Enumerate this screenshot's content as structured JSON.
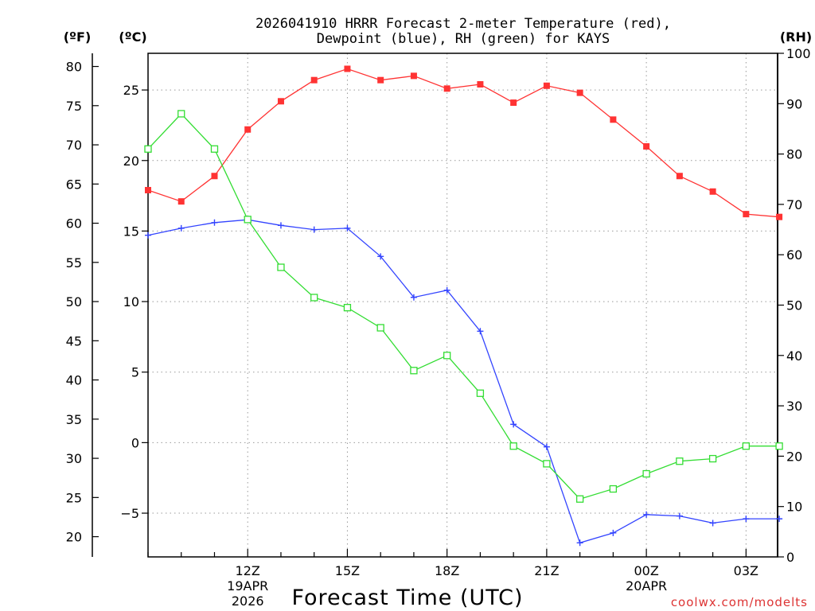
{
  "chart_data": {
    "type": "line",
    "title_line1": "2026041910 HRRR Forecast 2-meter Temperature (red),",
    "title_line2": "Dewpoint (blue), RH (green) for KAYS",
    "xlabel": "Forecast Time (UTC)",
    "x_hours": [
      9,
      10,
      11,
      12,
      13,
      14,
      15,
      16,
      17,
      18,
      19,
      20,
      21,
      22,
      23,
      24,
      25,
      26,
      27,
      28
    ],
    "x_ticks": [
      {
        "hour": 12,
        "label": "12Z",
        "sub1": "19APR",
        "sub2": "2026"
      },
      {
        "hour": 15,
        "label": "15Z"
      },
      {
        "hour": 18,
        "label": "18Z"
      },
      {
        "hour": 21,
        "label": "21Z"
      },
      {
        "hour": 24,
        "label": "00Z",
        "sub1": "20APR"
      },
      {
        "hour": 27,
        "label": "03Z"
      }
    ],
    "xlim": [
      9,
      27.95
    ],
    "y_celsius": {
      "label": "(ºC)",
      "lim": [
        -8.1,
        27.6
      ],
      "ticks": [
        25,
        20,
        15,
        10,
        5,
        0,
        -5
      ]
    },
    "y_fahrenheit": {
      "label": "(ºF)",
      "ticks": [
        80,
        75,
        70,
        65,
        60,
        55,
        50,
        45,
        40,
        35,
        30,
        25,
        20
      ]
    },
    "y_rh": {
      "label": "(RH)",
      "lim": [
        0,
        100
      ],
      "ticks": [
        100,
        90,
        80,
        70,
        60,
        50,
        40,
        30,
        20,
        10,
        0
      ]
    },
    "series": [
      {
        "name": "Temperature",
        "color": "#ff3333",
        "marker": "filled-square",
        "axis": "celsius",
        "values": [
          17.9,
          17.1,
          18.9,
          22.2,
          24.2,
          25.7,
          26.5,
          25.7,
          26.0,
          25.1,
          25.4,
          24.1,
          25.3,
          24.8,
          22.9,
          21.0,
          18.9,
          17.8,
          16.2,
          16.0
        ]
      },
      {
        "name": "Dewpoint",
        "color": "#3344ff",
        "marker": "plus",
        "axis": "celsius",
        "values": [
          14.7,
          15.2,
          15.6,
          15.8,
          15.4,
          15.1,
          15.2,
          13.2,
          10.3,
          10.8,
          7.9,
          1.3,
          -0.3,
          -7.1,
          -6.4,
          -5.1,
          -5.2,
          -5.7,
          -5.4,
          -5.4
        ]
      },
      {
        "name": "RH",
        "color": "#33dd33",
        "marker": "open-square",
        "axis": "rh",
        "values": [
          81,
          88,
          81,
          67,
          57.5,
          51.5,
          49.5,
          45.5,
          37,
          40,
          32.5,
          22,
          18.5,
          11.5,
          13.5,
          16.5,
          19,
          19.5,
          22,
          22
        ]
      }
    ],
    "grid": true
  },
  "watermark": "coolwx.com/modelts"
}
